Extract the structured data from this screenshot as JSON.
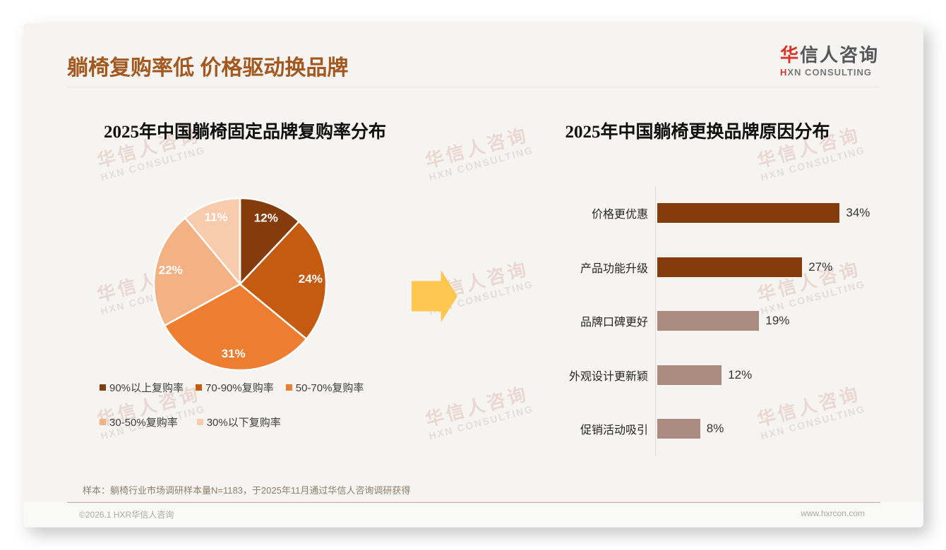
{
  "header": {
    "title": "躺椅复购率低 价格驱动换品牌",
    "logo": {
      "zh_accent": "华",
      "zh_rest": "信人咨询",
      "en_accent": "H",
      "en_rest": "XN CONSULTING"
    }
  },
  "chart_data": [
    {
      "type": "pie",
      "title": "2025年中国躺椅固定品牌复购率分布",
      "labels": [
        "90%以上复购率",
        "70-90%复购率",
        "50-70%复购率",
        "30-50%复购率",
        "30%以下复购率"
      ],
      "values": [
        12,
        24,
        31,
        22,
        11
      ],
      "unit": "%",
      "colors": [
        "#843C0C",
        "#C55A11",
        "#ED7D31",
        "#F4B183",
        "#F8CBAD"
      ],
      "start_angle": "top",
      "direction": "clockwise",
      "legend_position": "bottom",
      "label_color": "#ffffff"
    },
    {
      "type": "bar",
      "orientation": "horizontal",
      "title": "2025年中国躺椅更换品牌原因分布",
      "categories": [
        "价格更优惠",
        "产品功能升级",
        "品牌口碑更好",
        "外观设计更新颖",
        "促销活动吸引"
      ],
      "values": [
        34,
        27,
        19,
        12,
        8
      ],
      "unit": "%",
      "bar_colors": [
        "#843C0C",
        "#843C0C",
        "#AB8B80",
        "#AB8B80",
        "#AB8B80"
      ],
      "xlim": [
        0,
        40
      ],
      "value_labels": true,
      "axis_color": "#d9d9d9"
    }
  ],
  "arrow_icon_color": "#fcc64f",
  "note": "样本：躺椅行业市场调研样本量N=1183，于2025年11月通过华信人咨询调研获得",
  "footer": {
    "copyright": "©2026.1 HXR华信人咨询",
    "website": "www.hxrcon.com"
  },
  "watermark": {
    "line1": "华信人咨询",
    "line2": "HXN CONSULTING"
  },
  "colors": {
    "title": "#a3581f",
    "card_bg": "#f5f4f1",
    "logo_accent": "#d93429"
  }
}
